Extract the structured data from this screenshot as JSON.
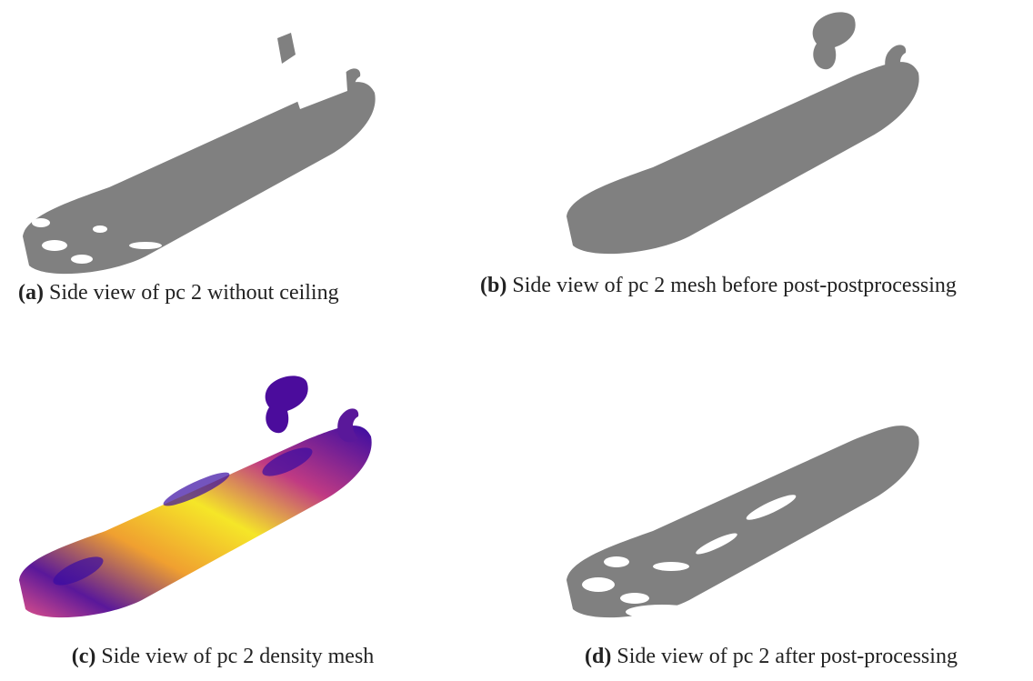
{
  "subfigures": [
    {
      "label": "(a)",
      "caption": "Side view of pc 2 without ceiling"
    },
    {
      "label": "(b)",
      "caption": "Side view of pc 2 mesh before post-postprocessing"
    },
    {
      "label": "(c)",
      "caption": "Side view of pc 2 density mesh"
    },
    {
      "label": "(d)",
      "caption": "Side view of pc 2 after post-processing"
    }
  ]
}
